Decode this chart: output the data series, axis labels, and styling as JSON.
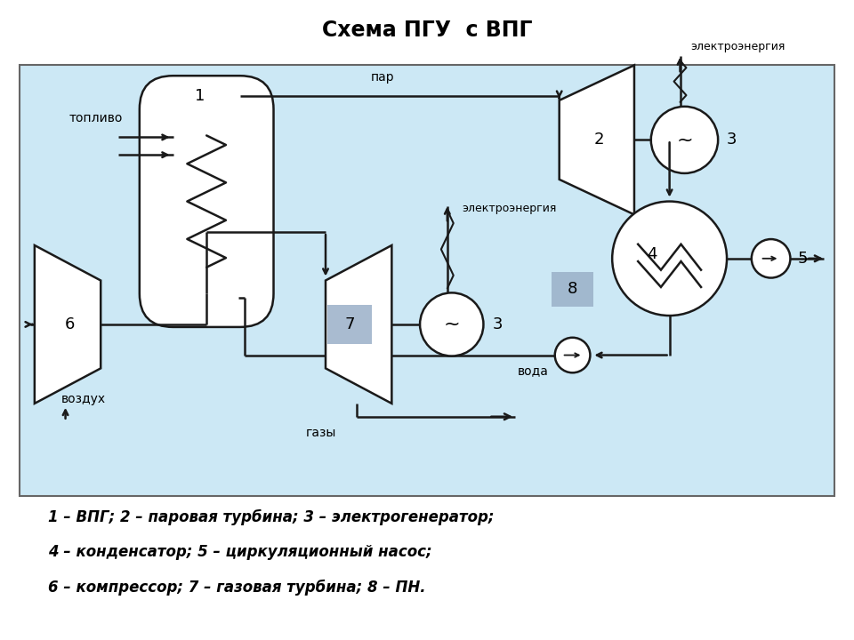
{
  "title": "Схема ПГУ  с ВПГ",
  "title_fontsize": 17,
  "bg_color": "#ffffff",
  "diagram_bg": "#cce8f5",
  "label1": "1 – ВПГ; 2 – паровая турбина; 3 – электрогенератор;",
  "label2": "4 – конденсатор; 5 – циркуляционный насос;",
  "label3": "6 – компрессор; 7 – газовая турбина; 8 – ПН."
}
